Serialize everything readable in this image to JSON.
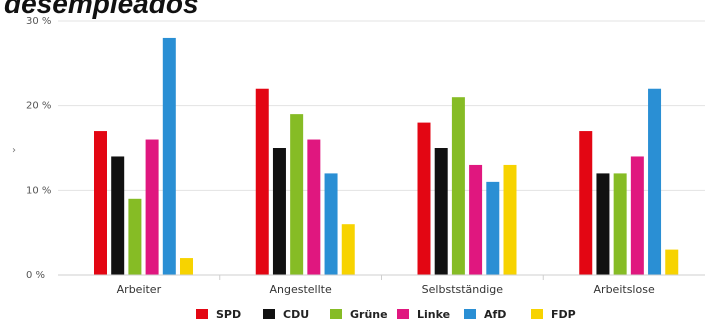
{
  "chart_data": {
    "type": "bar",
    "title": "desempleados",
    "categories": [
      "Arbeiter",
      "Angestellte",
      "Selbstständige",
      "Arbeitslose"
    ],
    "ylim": [
      0,
      30
    ],
    "yticks": [
      0,
      10,
      20,
      30
    ],
    "ytick_labels": [
      "0 %",
      "10 %",
      "20 %",
      "30 %"
    ],
    "grid": true,
    "legend_position": "bottom",
    "series": [
      {
        "name": "SPD",
        "color": "#e30613",
        "values": [
          17,
          22,
          18,
          17
        ]
      },
      {
        "name": "CDU",
        "color": "#111111",
        "values": [
          14,
          15,
          15,
          12
        ]
      },
      {
        "name": "Grüne",
        "color": "#86bc25",
        "values": [
          9,
          19,
          21,
          12
        ]
      },
      {
        "name": "Linke",
        "color": "#e0177f",
        "values": [
          16,
          16,
          13,
          14
        ]
      },
      {
        "name": "AfD",
        "color": "#2a8fd4",
        "values": [
          28,
          12,
          11,
          22
        ]
      },
      {
        "name": "FDP",
        "color": "#f7d300",
        "values": [
          2,
          6,
          13,
          3
        ]
      }
    ],
    "stray_mark": "›"
  }
}
